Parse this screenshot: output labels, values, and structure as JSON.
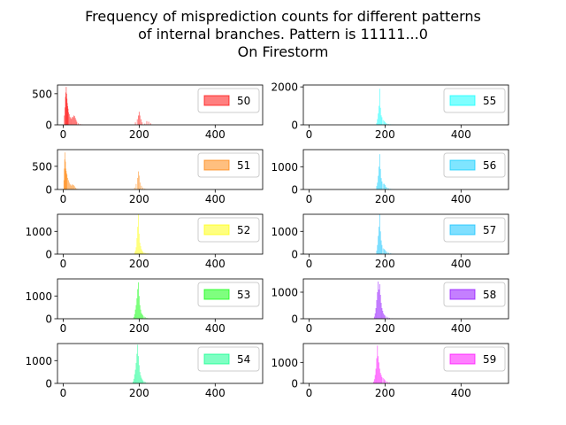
{
  "figure": {
    "title_lines": [
      "Frequency of misprediction counts for different patterns",
      "of internal branches. Pattern is 11111...0",
      "On Firestorm"
    ]
  },
  "chart_data": [
    {
      "type": "histogram",
      "legend": "50",
      "color": "#ff0000",
      "xlim": [
        -15,
        525
      ],
      "ylim": [
        0,
        640
      ],
      "xticks": [
        0,
        200,
        400
      ],
      "yticks": [
        0,
        500
      ],
      "legend_position": "upper right",
      "peaks": [
        [
          3,
          150
        ],
        [
          5,
          280
        ],
        [
          6,
          450
        ],
        [
          7,
          520
        ],
        [
          8,
          610
        ],
        [
          9,
          500
        ],
        [
          10,
          420
        ],
        [
          11,
          350
        ],
        [
          12,
          300
        ],
        [
          13,
          260
        ],
        [
          14,
          200
        ],
        [
          16,
          170
        ],
        [
          18,
          130
        ],
        [
          20,
          110
        ],
        [
          22,
          95
        ],
        [
          24,
          130
        ],
        [
          26,
          120
        ],
        [
          28,
          150
        ],
        [
          30,
          140
        ],
        [
          32,
          110
        ],
        [
          34,
          80
        ],
        [
          36,
          50
        ],
        [
          40,
          25
        ],
        [
          45,
          12
        ],
        [
          50,
          6
        ],
        [
          190,
          40
        ],
        [
          195,
          90
        ],
        [
          198,
          150
        ],
        [
          200,
          210
        ],
        [
          202,
          150
        ],
        [
          205,
          90
        ],
        [
          208,
          40
        ],
        [
          215,
          20
        ],
        [
          220,
          60
        ],
        [
          225,
          50
        ],
        [
          230,
          25
        ]
      ]
    },
    {
      "type": "histogram",
      "legend": "55",
      "color": "#00ffff",
      "xlim": [
        -15,
        525
      ],
      "ylim": [
        0,
        2100
      ],
      "xticks": [
        0,
        200,
        400
      ],
      "yticks": [
        0,
        2000
      ],
      "legend_position": "upper right",
      "peaks": [
        [
          178,
          100
        ],
        [
          180,
          300
        ],
        [
          182,
          600
        ],
        [
          184,
          1000
        ],
        [
          186,
          1900
        ],
        [
          188,
          900
        ],
        [
          190,
          500
        ],
        [
          192,
          400
        ],
        [
          195,
          250
        ],
        [
          198,
          200
        ],
        [
          200,
          150
        ],
        [
          203,
          90
        ],
        [
          206,
          60
        ],
        [
          210,
          40
        ],
        [
          215,
          30
        ],
        [
          220,
          20
        ],
        [
          225,
          10
        ]
      ]
    },
    {
      "type": "histogram",
      "legend": "51",
      "color": "#ff7f00",
      "xlim": [
        -15,
        525
      ],
      "ylim": [
        0,
        860
      ],
      "xticks": [
        0,
        200,
        400
      ],
      "yticks": [
        0,
        500
      ],
      "legend_position": "upper right",
      "peaks": [
        [
          2,
          200
        ],
        [
          3,
          450
        ],
        [
          4,
          650
        ],
        [
          5,
          800
        ],
        [
          6,
          600
        ],
        [
          7,
          450
        ],
        [
          8,
          400
        ],
        [
          9,
          350
        ],
        [
          10,
          320
        ],
        [
          12,
          250
        ],
        [
          14,
          200
        ],
        [
          16,
          150
        ],
        [
          18,
          120
        ],
        [
          20,
          100
        ],
        [
          22,
          80
        ],
        [
          24,
          110
        ],
        [
          26,
          100
        ],
        [
          28,
          90
        ],
        [
          30,
          70
        ],
        [
          33,
          40
        ],
        [
          36,
          20
        ],
        [
          40,
          10
        ],
        [
          188,
          40
        ],
        [
          192,
          120
        ],
        [
          196,
          250
        ],
        [
          198,
          390
        ],
        [
          200,
          300
        ],
        [
          203,
          150
        ],
        [
          206,
          80
        ],
        [
          210,
          40
        ],
        [
          215,
          20
        ],
        [
          220,
          10
        ]
      ]
    },
    {
      "type": "histogram",
      "legend": "56",
      "color": "#00ccff",
      "xlim": [
        -15,
        525
      ],
      "ylim": [
        0,
        1750
      ],
      "xticks": [
        0,
        200,
        400
      ],
      "yticks": [
        0,
        1000
      ],
      "legend_position": "upper right",
      "peaks": [
        [
          178,
          150
        ],
        [
          180,
          300
        ],
        [
          182,
          600
        ],
        [
          184,
          1000
        ],
        [
          186,
          1550
        ],
        [
          188,
          900
        ],
        [
          190,
          500
        ],
        [
          192,
          350
        ],
        [
          195,
          250
        ],
        [
          198,
          250
        ],
        [
          200,
          200
        ],
        [
          203,
          120
        ],
        [
          206,
          80
        ],
        [
          210,
          50
        ],
        [
          215,
          30
        ],
        [
          220,
          20
        ],
        [
          225,
          10
        ]
      ]
    },
    {
      "type": "histogram",
      "legend": "52",
      "color": "#ffff00",
      "xlim": [
        -15,
        525
      ],
      "ylim": [
        0,
        1750
      ],
      "xticks": [
        0,
        200,
        400
      ],
      "yticks": [
        0,
        1000
      ],
      "legend_position": "upper right",
      "peaks": [
        [
          188,
          60
        ],
        [
          190,
          150
        ],
        [
          192,
          300
        ],
        [
          194,
          700
        ],
        [
          196,
          1200
        ],
        [
          198,
          1750
        ],
        [
          200,
          900
        ],
        [
          202,
          500
        ],
        [
          204,
          350
        ],
        [
          206,
          220
        ],
        [
          208,
          150
        ],
        [
          210,
          100
        ],
        [
          213,
          70
        ],
        [
          216,
          50
        ],
        [
          220,
          40
        ],
        [
          224,
          30
        ],
        [
          228,
          20
        ],
        [
          232,
          10
        ]
      ]
    },
    {
      "type": "histogram",
      "legend": "57",
      "color": "#00bfff",
      "xlim": [
        -15,
        525
      ],
      "ylim": [
        0,
        1750
      ],
      "xticks": [
        0,
        200,
        400
      ],
      "yticks": [
        0,
        1000
      ],
      "legend_position": "upper right",
      "peaks": [
        [
          178,
          150
        ],
        [
          180,
          400
        ],
        [
          182,
          800
        ],
        [
          184,
          1200
        ],
        [
          186,
          1750
        ],
        [
          188,
          1000
        ],
        [
          190,
          600
        ],
        [
          192,
          400
        ],
        [
          195,
          250
        ],
        [
          198,
          220
        ],
        [
          200,
          180
        ],
        [
          203,
          130
        ],
        [
          206,
          90
        ],
        [
          210,
          60
        ],
        [
          215,
          40
        ],
        [
          220,
          20
        ],
        [
          225,
          10
        ]
      ]
    },
    {
      "type": "histogram",
      "legend": "53",
      "color": "#00ff00",
      "xlim": [
        -15,
        525
      ],
      "ylim": [
        0,
        1750
      ],
      "xticks": [
        0,
        200,
        400
      ],
      "yticks": [
        0,
        1000
      ],
      "legend_position": "upper right",
      "peaks": [
        [
          186,
          80
        ],
        [
          188,
          200
        ],
        [
          190,
          400
        ],
        [
          192,
          600
        ],
        [
          194,
          900
        ],
        [
          196,
          1300
        ],
        [
          198,
          1600
        ],
        [
          200,
          1000
        ],
        [
          202,
          600
        ],
        [
          204,
          400
        ],
        [
          206,
          250
        ],
        [
          208,
          200
        ],
        [
          210,
          150
        ],
        [
          213,
          100
        ],
        [
          216,
          70
        ],
        [
          220,
          40
        ],
        [
          224,
          20
        ]
      ]
    },
    {
      "type": "histogram",
      "legend": "58",
      "color": "#8a00ff",
      "xlim": [
        -15,
        525
      ],
      "ylim": [
        0,
        1500
      ],
      "xticks": [
        0,
        200,
        400
      ],
      "yticks": [
        0,
        1000
      ],
      "legend_position": "upper right",
      "peaks": [
        [
          172,
          80
        ],
        [
          174,
          200
        ],
        [
          176,
          400
        ],
        [
          178,
          700
        ],
        [
          180,
          1000
        ],
        [
          182,
          1400
        ],
        [
          184,
          1100
        ],
        [
          186,
          1300
        ],
        [
          188,
          900
        ],
        [
          190,
          600
        ],
        [
          192,
          400
        ],
        [
          194,
          300
        ],
        [
          196,
          200
        ],
        [
          198,
          150
        ],
        [
          200,
          120
        ],
        [
          204,
          80
        ],
        [
          208,
          50
        ],
        [
          212,
          30
        ],
        [
          218,
          15
        ]
      ]
    },
    {
      "type": "histogram",
      "legend": "54",
      "color": "#00ff88",
      "xlim": [
        -15,
        525
      ],
      "ylim": [
        0,
        1750
      ],
      "xticks": [
        0,
        200,
        400
      ],
      "yticks": [
        0,
        1000
      ],
      "legend_position": "upper right",
      "peaks": [
        [
          184,
          80
        ],
        [
          186,
          200
        ],
        [
          188,
          400
        ],
        [
          190,
          600
        ],
        [
          192,
          900
        ],
        [
          194,
          1300
        ],
        [
          196,
          1700
        ],
        [
          198,
          1200
        ],
        [
          200,
          800
        ],
        [
          202,
          500
        ],
        [
          204,
          350
        ],
        [
          206,
          250
        ],
        [
          208,
          180
        ],
        [
          210,
          130
        ],
        [
          213,
          90
        ],
        [
          216,
          60
        ],
        [
          220,
          30
        ],
        [
          224,
          15
        ]
      ]
    },
    {
      "type": "histogram",
      "legend": "59",
      "color": "#ff00ff",
      "xlim": [
        -15,
        525
      ],
      "ylim": [
        0,
        1900
      ],
      "xticks": [
        0,
        200,
        400
      ],
      "yticks": [
        0,
        1000
      ],
      "legend_position": "upper right",
      "peaks": [
        [
          170,
          80
        ],
        [
          172,
          200
        ],
        [
          174,
          400
        ],
        [
          176,
          700
        ],
        [
          178,
          1200
        ],
        [
          180,
          1800
        ],
        [
          182,
          1300
        ],
        [
          184,
          1000
        ],
        [
          186,
          700
        ],
        [
          188,
          500
        ],
        [
          190,
          400
        ],
        [
          192,
          300
        ],
        [
          195,
          250
        ],
        [
          198,
          200
        ],
        [
          200,
          150
        ],
        [
          204,
          100
        ],
        [
          208,
          60
        ],
        [
          212,
          40
        ],
        [
          218,
          20
        ]
      ]
    }
  ]
}
